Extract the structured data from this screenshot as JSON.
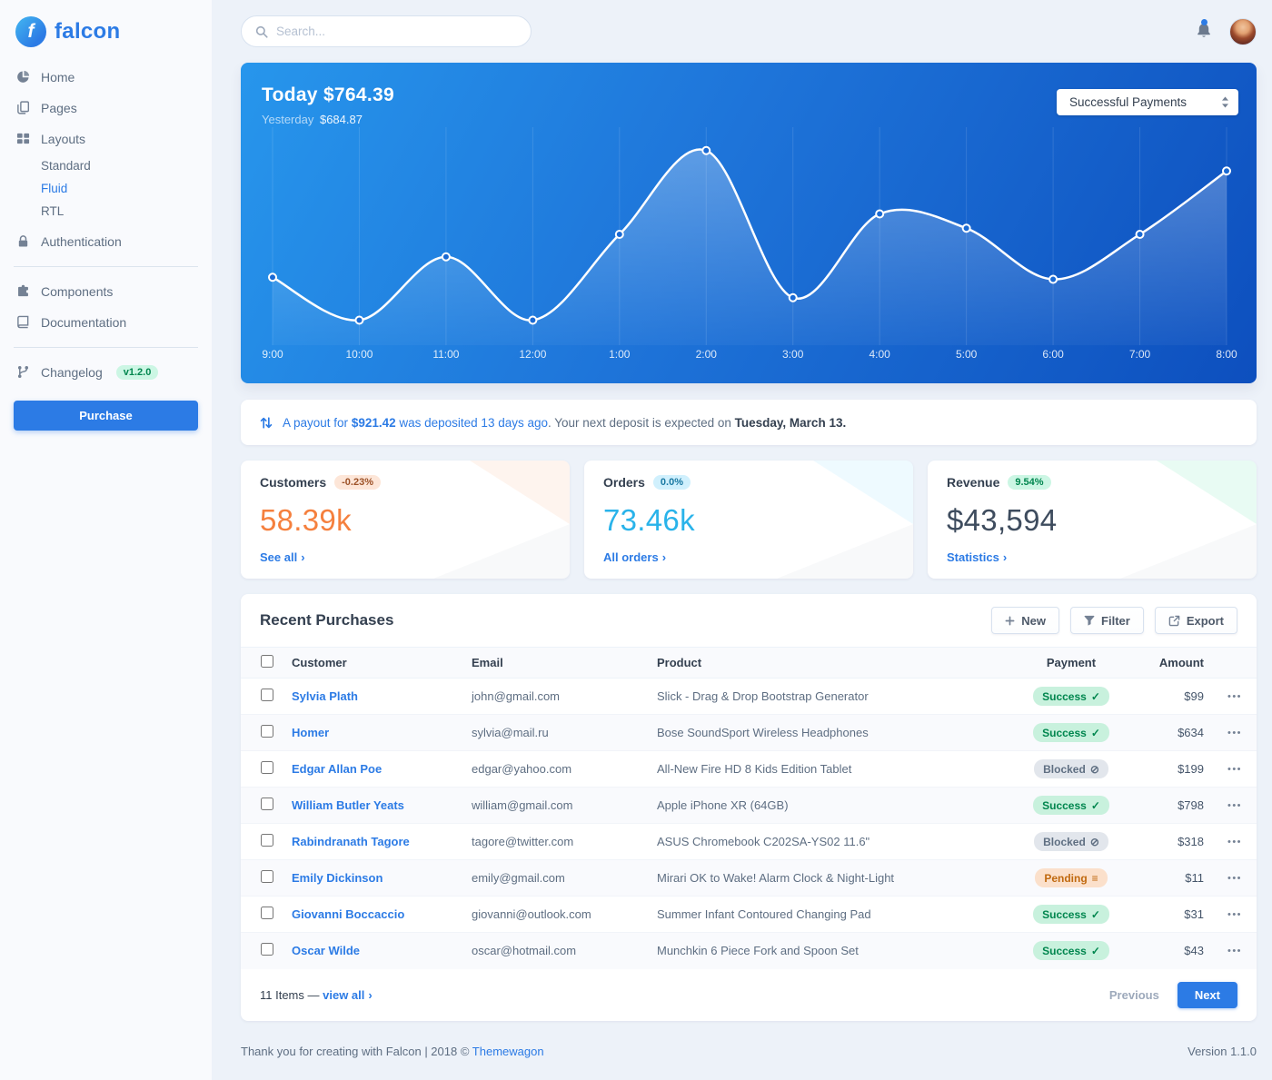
{
  "brand": {
    "name": "falcon",
    "logo_letter": "f"
  },
  "topbar": {
    "search_placeholder": "Search..."
  },
  "icons": {
    "chevron_right": "›",
    "ellipsis": "•••",
    "check": "✓",
    "ban": "⊘",
    "stream": "≡"
  },
  "sidebar": {
    "items": [
      {
        "label": "Home"
      },
      {
        "label": "Pages"
      },
      {
        "label": "Layouts",
        "children": [
          {
            "label": "Standard",
            "active": false
          },
          {
            "label": "Fluid",
            "active": true
          },
          {
            "label": "RTL",
            "active": false
          }
        ]
      },
      {
        "label": "Authentication"
      },
      {
        "label": "Components"
      },
      {
        "label": "Documentation"
      },
      {
        "label": "Changelog",
        "badge": "v1.2.0"
      }
    ],
    "purchase_label": "Purchase"
  },
  "chart_card": {
    "title_label": "Today",
    "title_value": "$764.39",
    "subtitle_label": "Yesterday",
    "subtitle_value": "$684.87",
    "select_value": "Successful Payments"
  },
  "chart_data": {
    "type": "line",
    "title": "Today $764.39",
    "x": [
      "9:00",
      "10:00",
      "11:00",
      "12:00",
      "1:00",
      "2:00",
      "3:00",
      "4:00",
      "5:00",
      "6:00",
      "7:00",
      "8:00"
    ],
    "series": [
      {
        "name": "Successful Payments",
        "values": [
          31,
          10,
          41,
          10,
          52,
          93,
          21,
          62,
          55,
          30,
          52,
          83
        ]
      }
    ],
    "ylim": [
      0,
      100
    ],
    "grid": "vertical",
    "legend": false
  },
  "payout": {
    "link_prefix": "A payout for ",
    "amount": "$921.42",
    "link_suffix": " was deposited 13 days ago",
    "muted": ". Your next deposit is expected on ",
    "date": "Tuesday, March 13."
  },
  "stats": {
    "cards": [
      {
        "title": "Customers",
        "badge": "-0.23%",
        "value": "58.39k",
        "link": "See all",
        "variant": "warning"
      },
      {
        "title": "Orders",
        "badge": "0.0%",
        "value": "73.46k",
        "link": "All orders",
        "variant": "info"
      },
      {
        "title": "Revenue",
        "badge": "9.54%",
        "value": "$43,594",
        "link": "Statistics",
        "variant": "success"
      }
    ]
  },
  "purchases": {
    "title": "Recent Purchases",
    "buttons": {
      "new": "New",
      "filter": "Filter",
      "export": "Export"
    },
    "columns": [
      "Customer",
      "Email",
      "Product",
      "Payment",
      "Amount"
    ],
    "rows": [
      {
        "customer": "Sylvia Plath",
        "email": "john@gmail.com",
        "product": "Slick - Drag & Drop Bootstrap Generator",
        "payment": "Success",
        "payment_variant": "success",
        "amount": "$99"
      },
      {
        "customer": "Homer",
        "email": "sylvia@mail.ru",
        "product": "Bose SoundSport Wireless Headphones",
        "payment": "Success",
        "payment_variant": "success",
        "amount": "$634"
      },
      {
        "customer": "Edgar Allan Poe",
        "email": "edgar@yahoo.com",
        "product": "All-New Fire HD 8 Kids Edition Tablet",
        "payment": "Blocked",
        "payment_variant": "blocked",
        "amount": "$199"
      },
      {
        "customer": "William Butler Yeats",
        "email": "william@gmail.com",
        "product": "Apple iPhone XR (64GB)",
        "payment": "Success",
        "payment_variant": "success",
        "amount": "$798"
      },
      {
        "customer": "Rabindranath Tagore",
        "email": "tagore@twitter.com",
        "product": "ASUS Chromebook C202SA-YS02 11.6\"",
        "payment": "Blocked",
        "payment_variant": "blocked",
        "amount": "$318"
      },
      {
        "customer": "Emily Dickinson",
        "email": "emily@gmail.com",
        "product": "Mirari OK to Wake! Alarm Clock & Night-Light",
        "payment": "Pending",
        "payment_variant": "pending",
        "amount": "$11"
      },
      {
        "customer": "Giovanni Boccaccio",
        "email": "giovanni@outlook.com",
        "product": "Summer Infant Contoured Changing Pad",
        "payment": "Success",
        "payment_variant": "success",
        "amount": "$31"
      },
      {
        "customer": "Oscar Wilde",
        "email": "oscar@hotmail.com",
        "product": "Munchkin 6 Piece Fork and Spoon Set",
        "payment": "Success",
        "payment_variant": "success",
        "amount": "$43"
      }
    ],
    "footer": {
      "items_text": "11 Items — ",
      "view_all": "view all",
      "previous": "Previous",
      "next": "Next"
    }
  },
  "footer": {
    "thanks": "Thank you for creating with Falcon | 2018 © ",
    "brand_link": "Themewagon",
    "version": "Version 1.1.0"
  },
  "colors": {
    "primary": "#2c7be5",
    "success": "#00d27a",
    "warning": "#f5803e",
    "info": "#27bcfd"
  }
}
